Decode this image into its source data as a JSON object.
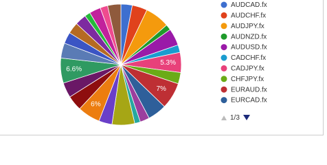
{
  "chart_data": {
    "type": "pie",
    "categories": [
      "AUDCAD.fx",
      "AUDCHF.fx",
      "AUDJPY.fx",
      "AUDNZD.fx",
      "AUDUSD.fx",
      "CADCHF.fx",
      "CADJPY.fx",
      "CHFJPY.fx",
      "EURAUD.fx",
      "EURCAD.fx",
      null,
      null,
      null,
      null,
      null,
      null,
      null,
      null,
      null,
      null,
      null,
      null,
      null,
      null,
      null,
      null
    ],
    "values": [
      3,
      4,
      6.5,
      1.5,
      4.5,
      2,
      5.3,
      3,
      7,
      5,
      2.5,
      1.5,
      6,
      3.5,
      6,
      4,
      4,
      6.6,
      4,
      3,
      3,
      3,
      1.5,
      3,
      2,
      3.5
    ],
    "value_labels": [
      null,
      null,
      null,
      null,
      null,
      null,
      "5.3%",
      null,
      "7%",
      null,
      null,
      null,
      null,
      null,
      "6%",
      null,
      null,
      "6.6%",
      null,
      null,
      null,
      null,
      null,
      null,
      null,
      null
    ],
    "colors": [
      "#3d6fcf",
      "#e0421c",
      "#f49a0d",
      "#1f9a2b",
      "#9a1aa8",
      "#1a9ccf",
      "#e8417a",
      "#6aab17",
      "#be2f34",
      "#2e5f9a",
      "#9b3e9e",
      "#27a8a0",
      "#a6a615",
      "#6a3fc8",
      "#ec7d10",
      "#8e0e0e",
      "#6a1866",
      "#2f9a62",
      "#5a7bb5",
      "#3b55c4",
      "#b56a22",
      "#7d2aa0",
      "#25b93a",
      "#c2219c",
      "#ef4b8f",
      "#8f5a3c"
    ]
  },
  "pager": "1/3"
}
